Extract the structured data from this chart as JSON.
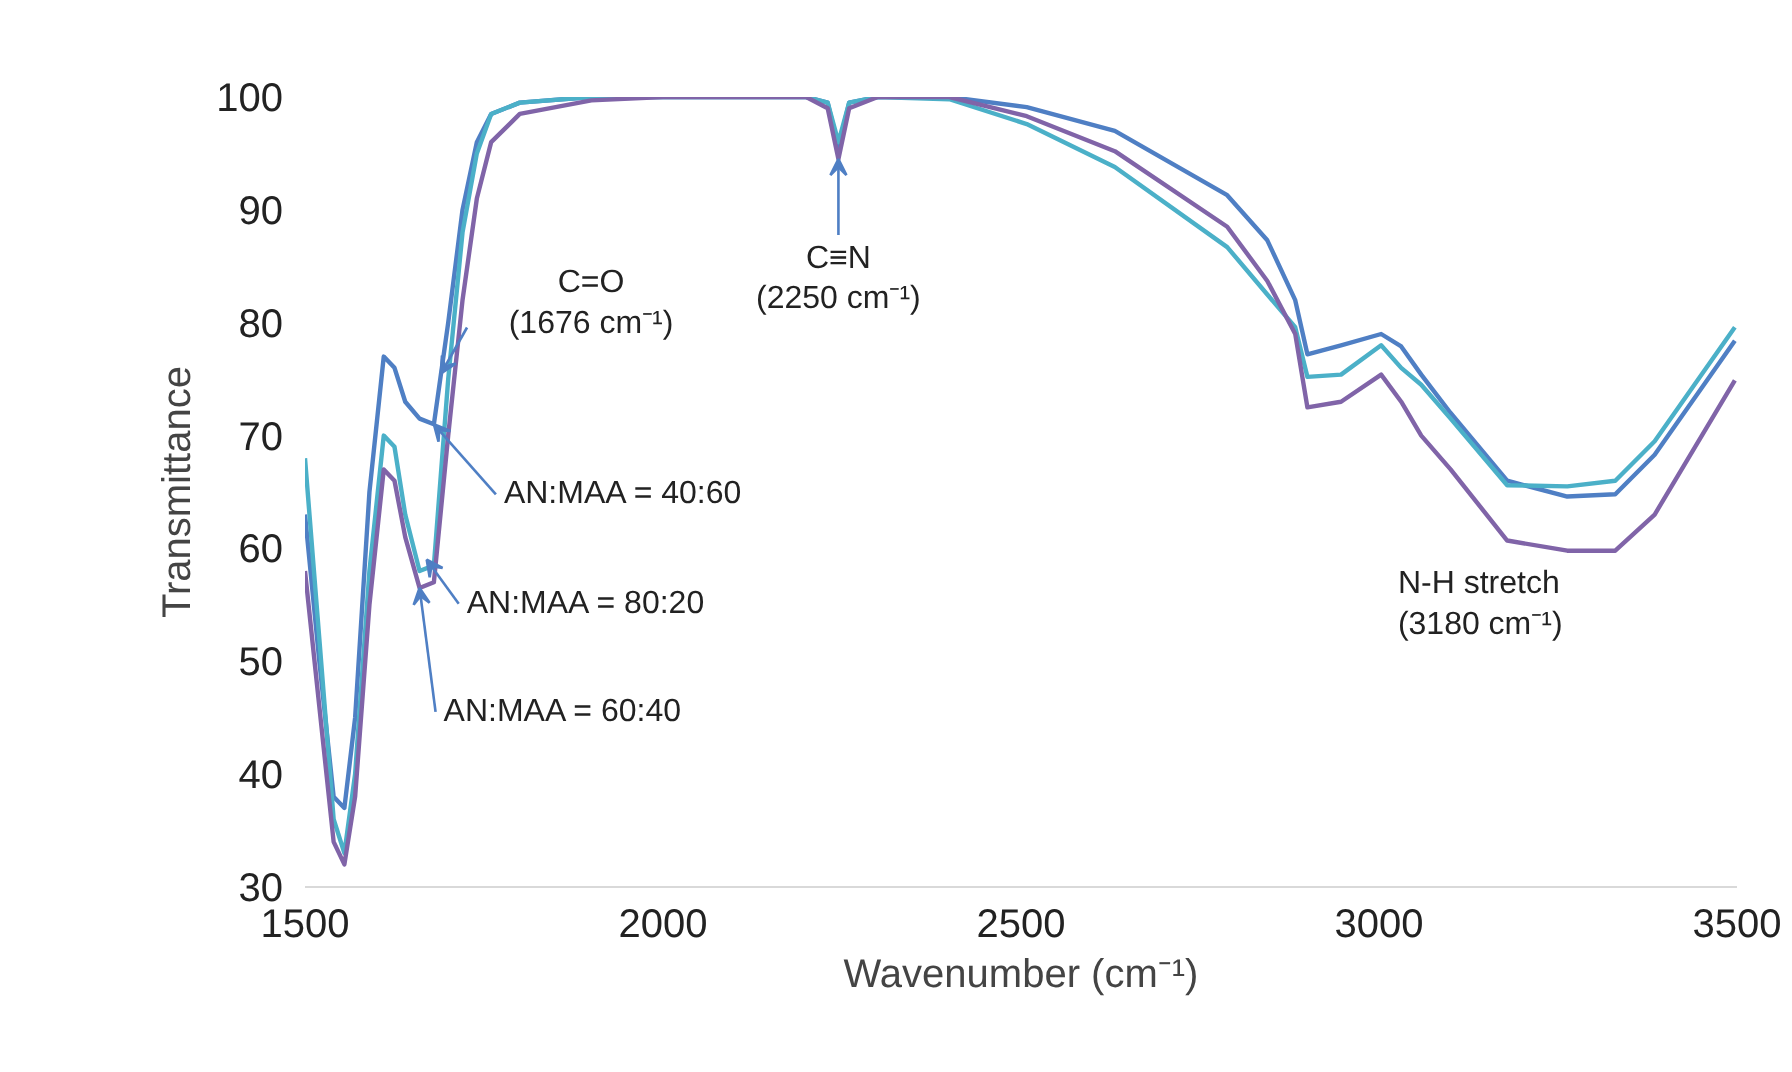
{
  "chart_data": {
    "type": "line",
    "xlabel": "Wavenumber (cm⁻¹)",
    "ylabel": "Transmittance",
    "x": [
      1500,
      1520,
      1540,
      1555,
      1570,
      1590,
      1610,
      1625,
      1640,
      1660,
      1680,
      1700,
      1720,
      1740,
      1760,
      1800,
      1900,
      2000,
      2200,
      2230,
      2245,
      2260,
      2300,
      2400,
      2508,
      2631,
      2788,
      2844,
      2883,
      2900,
      2947,
      3003,
      3031,
      3059,
      3100,
      3179,
      3263,
      3330,
      3385,
      3497
    ],
    "series": [
      {
        "color": "#4f7fc4",
        "values": [
          63,
          50,
          38,
          37,
          45,
          65,
          77,
          76,
          73,
          71.5,
          71,
          80,
          90,
          96,
          98.5,
          99.5,
          100,
          100,
          100,
          99.5,
          95.5,
          99.5,
          100,
          100,
          99.1,
          97,
          91.3,
          87.3,
          82,
          77.2,
          78,
          79,
          77.9,
          75.4,
          72,
          66,
          64.6,
          64.8,
          68.3,
          78.4
        ]
      },
      {
        "color": "#4bb0c8",
        "values": [
          68,
          52,
          36,
          33,
          40,
          58,
          70,
          69,
          63,
          58,
          58.5,
          75,
          88,
          95,
          98.5,
          99.5,
          100,
          100,
          100,
          99.5,
          96,
          99.5,
          100,
          99.8,
          97.6,
          93.8,
          86.7,
          82.5,
          79.6,
          75.2,
          75.4,
          78,
          76,
          74.5,
          71.5,
          65.6,
          65.5,
          66,
          69.5,
          79.6
        ]
      },
      {
        "color": "#8064a8",
        "values": [
          58,
          46,
          34,
          32,
          38,
          55,
          67,
          66,
          61,
          56.5,
          57,
          70,
          82,
          91,
          96,
          98.5,
          99.7,
          100,
          100,
          99,
          94.5,
          99,
          100,
          100,
          98.3,
          95.2,
          88.5,
          83.7,
          79,
          72.5,
          73,
          75.4,
          73,
          70,
          67,
          60.7,
          59.8,
          59.8,
          63,
          74.9
        ]
      }
    ],
    "xlim": [
      1500,
      3500
    ],
    "ylim": [
      30,
      100
    ],
    "xticks": [
      1500,
      2000,
      2500,
      3000,
      3500
    ],
    "yticks": [
      30,
      40,
      50,
      60,
      70,
      80,
      90,
      100
    ],
    "grid": false,
    "line_style": "solid",
    "marker": "none",
    "annotations": [
      {
        "text": "C=O\n(1676 cm⁻¹)",
        "x": 1690,
        "y": 75.5
      },
      {
        "text": "AN:MAA = 40:60",
        "x": 1680,
        "y": 71
      },
      {
        "text": "AN:MAA = 80:20",
        "x": 1670,
        "y": 59
      },
      {
        "text": "AN:MAA = 60:40",
        "x": 1660,
        "y": 56.5
      },
      {
        "text": "C≡N\n(2250 cm⁻¹)",
        "x": 2245,
        "y": 94.5
      },
      {
        "text": "N-H stretch\n(3180 cm⁻¹)",
        "x": 3180,
        "y": 60.7
      }
    ]
  }
}
